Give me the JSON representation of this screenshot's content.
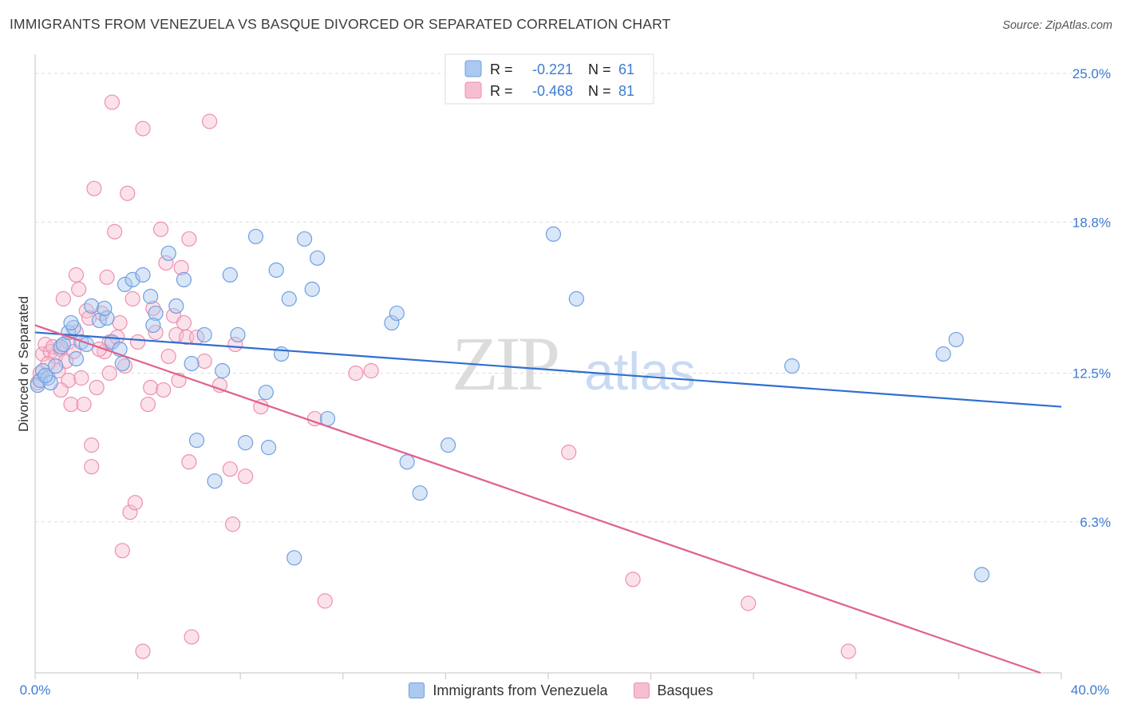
{
  "header": {
    "title": "IMMIGRANTS FROM VENEZUELA VS BASQUE DIVORCED OR SEPARATED CORRELATION CHART",
    "source": "Source: ZipAtlas.com"
  },
  "watermark": {
    "zip": "ZIP",
    "atlas": "atlas"
  },
  "legend": {
    "rows": [
      {
        "r_label": "R =",
        "r_value": "-0.221",
        "n_label": "N =",
        "n_value": "61"
      },
      {
        "r_label": "R =",
        "r_value": "-0.468",
        "n_label": "N =",
        "n_value": "81"
      }
    ]
  },
  "colors": {
    "blue": "#6fa0e0",
    "blue_line": "#2f6fd0",
    "blue_fill": "#aac8f0",
    "pink": "#ee8fb0",
    "pink_line": "#e0608d",
    "pink_fill": "#f6bfd1",
    "axis_text": "#3d7bd1"
  },
  "chart_data": {
    "type": "scatter",
    "title": "IMMIGRANTS FROM VENEZUELA VS BASQUE DIVORCED OR SEPARATED CORRELATION CHART",
    "xlabel": "",
    "ylabel": "Divorced or Separated",
    "xlim": [
      0,
      40
    ],
    "ylim": [
      0,
      25.6
    ],
    "x_tick_labels": [
      "0.0%",
      "40.0%"
    ],
    "y_ticks": [
      6.3,
      12.5,
      18.8,
      25.0
    ],
    "y_tick_labels": [
      "6.3%",
      "12.5%",
      "18.8%",
      "25.0%"
    ],
    "grid": true,
    "legend_position": "top-center",
    "series": [
      {
        "name": "Immigrants from Venezuela",
        "color": "#6fa0e0",
        "r": -0.221,
        "n": 61,
        "trend": {
          "x": [
            0,
            40
          ],
          "y": [
            14.2,
            11.1
          ]
        },
        "points": [
          [
            0.1,
            12.0
          ],
          [
            0.2,
            12.2
          ],
          [
            0.3,
            12.6
          ],
          [
            0.5,
            12.3
          ],
          [
            0.6,
            12.1
          ],
          [
            0.8,
            12.8
          ],
          [
            1.0,
            13.6
          ],
          [
            1.1,
            13.7
          ],
          [
            1.3,
            14.2
          ],
          [
            1.5,
            14.4
          ],
          [
            1.6,
            13.1
          ],
          [
            1.8,
            13.8
          ],
          [
            2.0,
            13.7
          ],
          [
            2.2,
            15.3
          ],
          [
            2.5,
            14.7
          ],
          [
            2.8,
            14.8
          ],
          [
            3.0,
            13.8
          ],
          [
            3.3,
            13.5
          ],
          [
            3.5,
            16.2
          ],
          [
            3.8,
            16.4
          ],
          [
            4.2,
            16.6
          ],
          [
            4.5,
            15.7
          ],
          [
            4.7,
            15.0
          ],
          [
            5.2,
            17.5
          ],
          [
            5.5,
            15.3
          ],
          [
            5.8,
            16.4
          ],
          [
            6.1,
            12.9
          ],
          [
            6.3,
            9.7
          ],
          [
            6.6,
            14.1
          ],
          [
            7.0,
            8.0
          ],
          [
            7.3,
            12.6
          ],
          [
            7.6,
            16.6
          ],
          [
            7.9,
            14.1
          ],
          [
            8.2,
            9.6
          ],
          [
            8.6,
            18.2
          ],
          [
            9.0,
            11.7
          ],
          [
            9.1,
            9.4
          ],
          [
            9.4,
            16.8
          ],
          [
            9.6,
            13.3
          ],
          [
            9.9,
            15.6
          ],
          [
            10.1,
            4.8
          ],
          [
            10.5,
            18.1
          ],
          [
            10.8,
            16.0
          ],
          [
            11.0,
            17.3
          ],
          [
            11.4,
            10.6
          ],
          [
            13.9,
            14.6
          ],
          [
            14.1,
            15.0
          ],
          [
            14.5,
            8.8
          ],
          [
            15.0,
            7.5
          ],
          [
            16.1,
            9.5
          ],
          [
            20.2,
            18.3
          ],
          [
            21.1,
            15.6
          ],
          [
            29.5,
            12.8
          ],
          [
            35.4,
            13.3
          ],
          [
            35.9,
            13.9
          ],
          [
            36.9,
            4.1
          ],
          [
            0.4,
            12.4
          ],
          [
            1.4,
            14.6
          ],
          [
            3.4,
            12.9
          ],
          [
            4.6,
            14.5
          ],
          [
            2.7,
            15.2
          ]
        ]
      },
      {
        "name": "Basques",
        "color": "#ee8fb0",
        "r": -0.468,
        "n": 81,
        "trend": {
          "x": [
            0,
            40
          ],
          "y": [
            14.5,
            -0.3
          ]
        },
        "points": [
          [
            0.1,
            12.1
          ],
          [
            0.2,
            12.5
          ],
          [
            0.3,
            13.3
          ],
          [
            0.4,
            13.7
          ],
          [
            0.6,
            13.4
          ],
          [
            0.7,
            13.6
          ],
          [
            0.8,
            13.2
          ],
          [
            0.9,
            12.6
          ],
          [
            1.0,
            13.5
          ],
          [
            1.1,
            15.6
          ],
          [
            1.3,
            13.8
          ],
          [
            1.3,
            12.2
          ],
          [
            1.4,
            11.2
          ],
          [
            1.5,
            13.4
          ],
          [
            1.6,
            16.6
          ],
          [
            1.7,
            16.0
          ],
          [
            1.8,
            12.3
          ],
          [
            1.9,
            11.2
          ],
          [
            2.0,
            15.1
          ],
          [
            2.1,
            14.8
          ],
          [
            2.2,
            8.6
          ],
          [
            2.2,
            9.5
          ],
          [
            2.3,
            20.2
          ],
          [
            2.4,
            11.9
          ],
          [
            2.6,
            15.0
          ],
          [
            2.7,
            13.4
          ],
          [
            2.8,
            16.5
          ],
          [
            2.9,
            13.8
          ],
          [
            3.0,
            23.8
          ],
          [
            3.1,
            18.4
          ],
          [
            3.2,
            14.0
          ],
          [
            3.3,
            14.6
          ],
          [
            3.4,
            5.1
          ],
          [
            3.5,
            12.8
          ],
          [
            3.6,
            20.0
          ],
          [
            3.7,
            6.7
          ],
          [
            3.9,
            7.1
          ],
          [
            4.0,
            13.8
          ],
          [
            4.2,
            0.9
          ],
          [
            4.2,
            22.7
          ],
          [
            4.5,
            11.9
          ],
          [
            4.6,
            15.2
          ],
          [
            4.7,
            14.2
          ],
          [
            4.9,
            18.5
          ],
          [
            5.0,
            11.8
          ],
          [
            5.1,
            17.1
          ],
          [
            5.2,
            13.2
          ],
          [
            5.4,
            14.9
          ],
          [
            5.5,
            14.1
          ],
          [
            5.7,
            16.9
          ],
          [
            5.8,
            14.6
          ],
          [
            5.9,
            14.0
          ],
          [
            6.0,
            8.8
          ],
          [
            6.0,
            18.1
          ],
          [
            6.1,
            1.5
          ],
          [
            6.3,
            14.0
          ],
          [
            6.8,
            23.0
          ],
          [
            7.6,
            8.5
          ],
          [
            7.7,
            6.2
          ],
          [
            7.8,
            13.7
          ],
          [
            8.2,
            8.2
          ],
          [
            8.8,
            11.1
          ],
          [
            10.9,
            10.6
          ],
          [
            11.3,
            3.0
          ],
          [
            12.5,
            12.5
          ],
          [
            13.1,
            12.6
          ],
          [
            20.8,
            9.2
          ],
          [
            23.3,
            3.9
          ],
          [
            27.8,
            2.9
          ],
          [
            31.7,
            0.9
          ],
          [
            2.5,
            13.5
          ],
          [
            1.2,
            13.0
          ],
          [
            0.5,
            12.9
          ],
          [
            1.6,
            14.2
          ],
          [
            2.9,
            12.5
          ],
          [
            3.8,
            15.6
          ],
          [
            4.4,
            11.2
          ],
          [
            5.6,
            12.2
          ],
          [
            6.6,
            13.0
          ],
          [
            7.2,
            12.0
          ],
          [
            1.0,
            11.8
          ]
        ]
      }
    ]
  }
}
